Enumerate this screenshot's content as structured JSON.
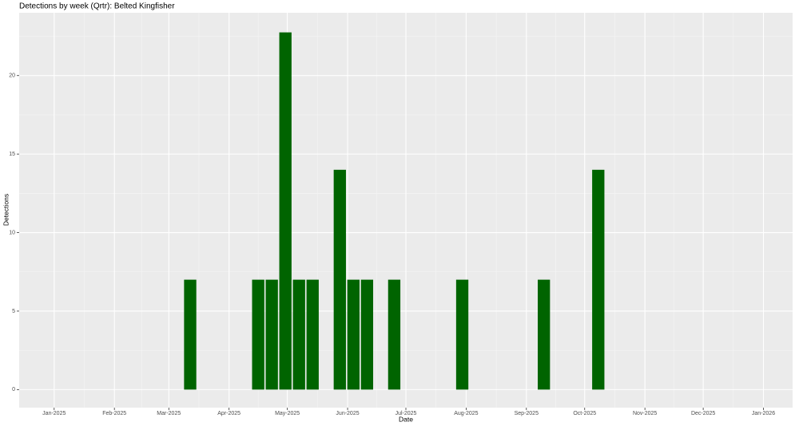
{
  "chart_data": {
    "type": "bar",
    "title": "Detections by week (Qrtr): Belted Kingfisher",
    "x_label": "Date",
    "y_label": "Detections",
    "x": [
      "2025-03-12",
      "2025-04-16",
      "2025-04-23",
      "2025-04-30",
      "2025-05-07",
      "2025-05-14",
      "2025-05-28",
      "2025-06-04",
      "2025-06-11",
      "2025-06-25",
      "2025-07-30",
      "2025-09-10",
      "2025-10-08"
    ],
    "values": [
      7,
      7,
      7,
      22.75,
      7,
      7,
      14,
      7,
      7,
      7,
      7,
      7,
      14
    ],
    "color": "#006400",
    "xlim": [
      "2024-12-14",
      "2026-01-16"
    ],
    "xticks": [
      {
        "value": "2025-01-01",
        "label": "Jan-2025"
      },
      {
        "value": "2025-02-01",
        "label": "Feb-2025"
      },
      {
        "value": "2025-03-01",
        "label": "Mar-2025"
      },
      {
        "value": "2025-04-01",
        "label": "Apr-2025"
      },
      {
        "value": "2025-05-01",
        "label": "May-2025"
      },
      {
        "value": "2025-06-01",
        "label": "Jun-2025"
      },
      {
        "value": "2025-07-01",
        "label": "Jul-2025"
      },
      {
        "value": "2025-08-01",
        "label": "Aug-2025"
      },
      {
        "value": "2025-09-01",
        "label": "Sep-2025"
      },
      {
        "value": "2025-10-01",
        "label": "Oct-2025"
      },
      {
        "value": "2025-11-01",
        "label": "Nov-2025"
      },
      {
        "value": "2025-12-01",
        "label": "Dec-2025"
      },
      {
        "value": "2026-01-01",
        "label": "Jan-2026"
      }
    ],
    "ylim": [
      -1.15,
      24.0
    ],
    "yticks": [
      0,
      5,
      10,
      15,
      20
    ],
    "grid": true
  }
}
